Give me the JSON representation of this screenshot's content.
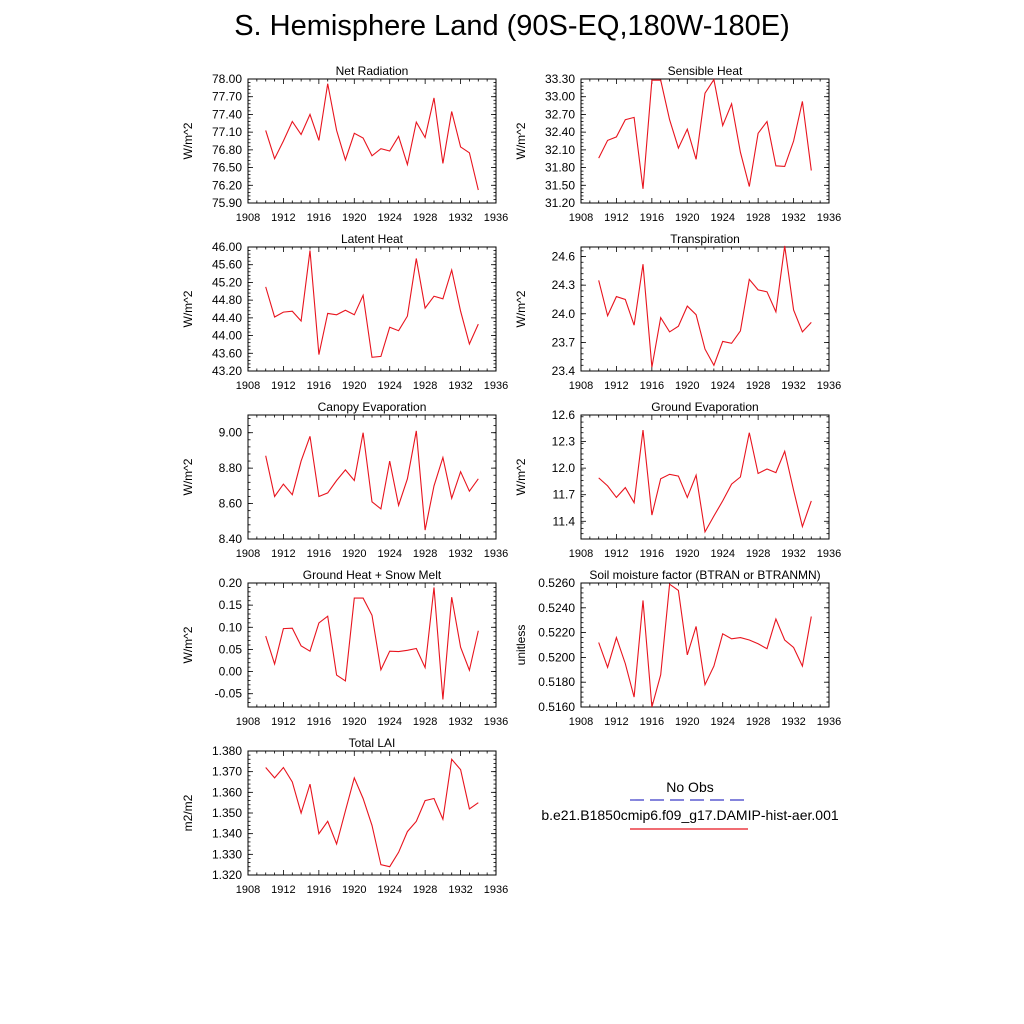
{
  "title": "S. Hemisphere Land (90S-EQ,180W-180E)",
  "legend": {
    "obs_label": "No Obs",
    "obs_color": "#3a3ac8",
    "model_label": "b.e21.B1850cmip6.f09_g17.DAMIP-hist-aer.001",
    "model_color": "#e8141e"
  },
  "chart_data": [
    {
      "type": "line",
      "title": "Net Radiation",
      "ylabel": "W/m^2",
      "xlim": [
        1908,
        1936
      ],
      "ylim": [
        75.9,
        78.0
      ],
      "xticks": [
        1908,
        1912,
        1916,
        1920,
        1924,
        1928,
        1932,
        1936
      ],
      "yticks": [
        "75.90",
        "76.20",
        "76.50",
        "76.80",
        "77.10",
        "77.40",
        "77.70",
        "78.00"
      ],
      "x": [
        1910,
        1911,
        1912,
        1913,
        1914,
        1915,
        1916,
        1917,
        1918,
        1919,
        1920,
        1921,
        1922,
        1923,
        1924,
        1925,
        1926,
        1927,
        1928,
        1929,
        1930,
        1931,
        1932,
        1933,
        1934
      ],
      "series": [
        {
          "values": [
            77.13,
            76.65,
            76.95,
            77.28,
            77.06,
            77.4,
            76.96,
            77.92,
            77.13,
            76.63,
            77.08,
            77.0,
            76.7,
            76.82,
            76.78,
            77.03,
            76.55,
            77.27,
            77.01,
            77.68,
            76.57,
            77.45,
            76.85,
            76.75,
            76.12
          ]
        }
      ]
    },
    {
      "type": "line",
      "title": "Sensible Heat",
      "ylabel": "W/m^2",
      "xlim": [
        1908,
        1936
      ],
      "ylim": [
        31.2,
        33.3
      ],
      "xticks": [
        1908,
        1912,
        1916,
        1920,
        1924,
        1928,
        1932,
        1936
      ],
      "yticks": [
        "31.20",
        "31.50",
        "31.80",
        "32.10",
        "32.40",
        "32.70",
        "33.00",
        "33.30"
      ],
      "x": [
        1910,
        1911,
        1912,
        1913,
        1914,
        1915,
        1916,
        1917,
        1918,
        1919,
        1920,
        1921,
        1922,
        1923,
        1924,
        1925,
        1926,
        1927,
        1928,
        1929,
        1930,
        1931,
        1932,
        1933,
        1934
      ],
      "series": [
        {
          "values": [
            31.96,
            32.26,
            32.32,
            32.61,
            32.65,
            31.44,
            33.28,
            33.28,
            32.61,
            32.13,
            32.45,
            31.94,
            33.06,
            33.29,
            32.51,
            32.88,
            32.06,
            31.48,
            32.38,
            32.58,
            31.83,
            31.82,
            32.25,
            32.92,
            31.75
          ]
        }
      ]
    },
    {
      "type": "line",
      "title": "Latent Heat",
      "ylabel": "W/m^2",
      "xlim": [
        1908,
        1936
      ],
      "ylim": [
        43.2,
        46.0
      ],
      "xticks": [
        1908,
        1912,
        1916,
        1920,
        1924,
        1928,
        1932,
        1936
      ],
      "yticks": [
        "43.20",
        "43.60",
        "44.00",
        "44.40",
        "44.80",
        "45.20",
        "45.60",
        "46.00"
      ],
      "x": [
        1910,
        1911,
        1912,
        1913,
        1914,
        1915,
        1916,
        1917,
        1918,
        1919,
        1920,
        1921,
        1922,
        1923,
        1924,
        1925,
        1926,
        1927,
        1928,
        1929,
        1930,
        1931,
        1932,
        1933,
        1934
      ],
      "series": [
        {
          "values": [
            45.1,
            44.42,
            44.53,
            44.55,
            44.33,
            45.92,
            43.57,
            44.5,
            44.47,
            44.57,
            44.47,
            44.91,
            43.51,
            43.53,
            44.19,
            44.11,
            44.44,
            45.74,
            44.62,
            44.89,
            44.83,
            45.48,
            44.55,
            43.81,
            44.26
          ]
        }
      ]
    },
    {
      "type": "line",
      "title": "Transpiration",
      "ylabel": "W/m^2",
      "xlim": [
        1908,
        1936
      ],
      "ylim": [
        23.4,
        24.7
      ],
      "xticks": [
        1908,
        1912,
        1916,
        1920,
        1924,
        1928,
        1932,
        1936
      ],
      "yticks": [
        "23.4",
        "23.7",
        "24.0",
        "24.3",
        "24.6"
      ],
      "x": [
        1910,
        1911,
        1912,
        1913,
        1914,
        1915,
        1916,
        1917,
        1918,
        1919,
        1920,
        1921,
        1922,
        1923,
        1924,
        1925,
        1926,
        1927,
        1928,
        1929,
        1930,
        1931,
        1932,
        1933,
        1934
      ],
      "series": [
        {
          "values": [
            24.35,
            23.98,
            24.18,
            24.15,
            23.88,
            24.52,
            23.44,
            23.96,
            23.81,
            23.87,
            24.08,
            23.99,
            23.63,
            23.46,
            23.71,
            23.69,
            23.82,
            24.36,
            24.25,
            24.23,
            24.02,
            24.71,
            24.04,
            23.81,
            23.91
          ]
        }
      ]
    },
    {
      "type": "line",
      "title": "Canopy Evaporation",
      "ylabel": "W/m^2",
      "xlim": [
        1908,
        1936
      ],
      "ylim": [
        8.4,
        9.1
      ],
      "xticks": [
        1908,
        1912,
        1916,
        1920,
        1924,
        1928,
        1932,
        1936
      ],
      "yticks": [
        "8.40",
        "8.60",
        "8.80",
        "9.00"
      ],
      "x": [
        1910,
        1911,
        1912,
        1913,
        1914,
        1915,
        1916,
        1917,
        1918,
        1919,
        1920,
        1921,
        1922,
        1923,
        1924,
        1925,
        1926,
        1927,
        1928,
        1929,
        1930,
        1931,
        1932,
        1933,
        1934
      ],
      "series": [
        {
          "values": [
            8.87,
            8.64,
            8.71,
            8.65,
            8.84,
            8.98,
            8.64,
            8.66,
            8.73,
            8.79,
            8.73,
            9.0,
            8.61,
            8.57,
            8.84,
            8.59,
            8.74,
            9.01,
            8.45,
            8.7,
            8.86,
            8.63,
            8.78,
            8.67,
            8.74
          ]
        }
      ]
    },
    {
      "type": "line",
      "title": "Ground Evaporation",
      "ylabel": "W/m^2",
      "xlim": [
        1908,
        1936
      ],
      "ylim": [
        11.2,
        12.6
      ],
      "xticks": [
        1908,
        1912,
        1916,
        1920,
        1924,
        1928,
        1932,
        1936
      ],
      "yticks": [
        "11.4",
        "11.7",
        "12.0",
        "12.3",
        "12.6"
      ],
      "x": [
        1910,
        1911,
        1912,
        1913,
        1914,
        1915,
        1916,
        1917,
        1918,
        1919,
        1920,
        1921,
        1922,
        1923,
        1924,
        1925,
        1926,
        1927,
        1928,
        1929,
        1930,
        1931,
        1932,
        1933,
        1934
      ],
      "series": [
        {
          "values": [
            11.89,
            11.8,
            11.67,
            11.78,
            11.61,
            12.43,
            11.47,
            11.88,
            11.93,
            11.91,
            11.67,
            11.92,
            11.28,
            11.46,
            11.63,
            11.82,
            11.9,
            12.4,
            11.94,
            11.99,
            11.95,
            12.19,
            11.75,
            11.34,
            11.63
          ]
        }
      ]
    },
    {
      "type": "line",
      "title": "Ground Heat + Snow Melt",
      "ylabel": "W/m^2",
      "xlim": [
        1908,
        1936
      ],
      "ylim": [
        -0.08,
        0.2
      ],
      "xticks": [
        1908,
        1912,
        1916,
        1920,
        1924,
        1928,
        1932,
        1936
      ],
      "yticks": [
        "-0.05",
        "0.00",
        "0.05",
        "0.10",
        "0.15",
        "0.20"
      ],
      "x": [
        1910,
        1911,
        1912,
        1913,
        1914,
        1915,
        1916,
        1917,
        1918,
        1919,
        1920,
        1921,
        1922,
        1923,
        1924,
        1925,
        1926,
        1927,
        1928,
        1929,
        1930,
        1931,
        1932,
        1933,
        1934
      ],
      "series": [
        {
          "values": [
            0.08,
            0.017,
            0.097,
            0.098,
            0.058,
            0.046,
            0.11,
            0.125,
            -0.008,
            -0.021,
            0.166,
            0.166,
            0.127,
            0.004,
            0.046,
            0.045,
            0.048,
            0.052,
            0.009,
            0.19,
            -0.063,
            0.168,
            0.055,
            0.003,
            0.092
          ]
        }
      ]
    },
    {
      "type": "line",
      "title": "Soil moisture factor (BTRAN or BTRANMN)",
      "ylabel": "unitless",
      "xlim": [
        1908,
        1936
      ],
      "ylim": [
        0.516,
        0.526
      ],
      "xticks": [
        1908,
        1912,
        1916,
        1920,
        1924,
        1928,
        1932,
        1936
      ],
      "yticks": [
        "0.5160",
        "0.5180",
        "0.5200",
        "0.5220",
        "0.5240",
        "0.5260"
      ],
      "x": [
        1910,
        1911,
        1912,
        1913,
        1914,
        1915,
        1916,
        1917,
        1918,
        1919,
        1920,
        1921,
        1922,
        1923,
        1924,
        1925,
        1926,
        1927,
        1928,
        1929,
        1930,
        1931,
        1932,
        1933,
        1934
      ],
      "series": [
        {
          "values": [
            0.5212,
            0.5192,
            0.5216,
            0.5195,
            0.5168,
            0.5246,
            0.516,
            0.5186,
            0.5259,
            0.5254,
            0.5202,
            0.5225,
            0.5178,
            0.5193,
            0.5219,
            0.5215,
            0.5216,
            0.5214,
            0.5211,
            0.5207,
            0.5231,
            0.5214,
            0.5208,
            0.5193,
            0.5233
          ]
        }
      ]
    },
    {
      "type": "line",
      "title": "Total LAI",
      "ylabel": "m2/m2",
      "xlim": [
        1908,
        1936
      ],
      "ylim": [
        1.32,
        1.38
      ],
      "xticks": [
        1908,
        1912,
        1916,
        1920,
        1924,
        1928,
        1932,
        1936
      ],
      "yticks": [
        "1.320",
        "1.330",
        "1.340",
        "1.350",
        "1.360",
        "1.370",
        "1.380"
      ],
      "x": [
        1910,
        1911,
        1912,
        1913,
        1914,
        1915,
        1916,
        1917,
        1918,
        1919,
        1920,
        1921,
        1922,
        1923,
        1924,
        1925,
        1926,
        1927,
        1928,
        1929,
        1930,
        1931,
        1932,
        1933,
        1934
      ],
      "series": [
        {
          "values": [
            1.372,
            1.367,
            1.372,
            1.365,
            1.35,
            1.364,
            1.34,
            1.346,
            1.335,
            1.351,
            1.367,
            1.357,
            1.344,
            1.325,
            1.324,
            1.331,
            1.341,
            1.346,
            1.356,
            1.357,
            1.347,
            1.376,
            1.371,
            1.352,
            1.355
          ]
        }
      ]
    }
  ]
}
